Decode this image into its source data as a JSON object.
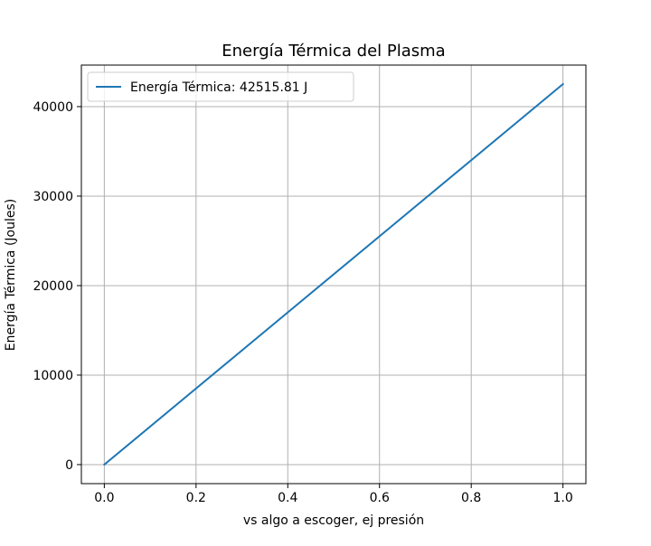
{
  "chart_data": {
    "type": "line",
    "title": "Energía Térmica del Plasma",
    "xlabel": "vs algo a escoger, ej presión",
    "ylabel": "Energía Térmica (Joules)",
    "xlim": [
      -0.05,
      1.05
    ],
    "ylim": [
      -2125.79,
      44641.6
    ],
    "x_ticks": [
      0.0,
      0.2,
      0.4,
      0.6,
      0.8,
      1.0
    ],
    "x_tick_labels": [
      "0.0",
      "0.2",
      "0.4",
      "0.6",
      "0.8",
      "1.0"
    ],
    "y_ticks": [
      0,
      10000,
      20000,
      30000,
      40000
    ],
    "y_tick_labels": [
      "0",
      "10000",
      "20000",
      "30000",
      "40000"
    ],
    "grid": true,
    "legend_position": "top-left",
    "series": [
      {
        "name": "Energía Térmica: 42515.81 J",
        "color": "#1f77b4",
        "x": [
          0.0,
          1.0
        ],
        "y": [
          0,
          42515.81
        ]
      }
    ]
  }
}
